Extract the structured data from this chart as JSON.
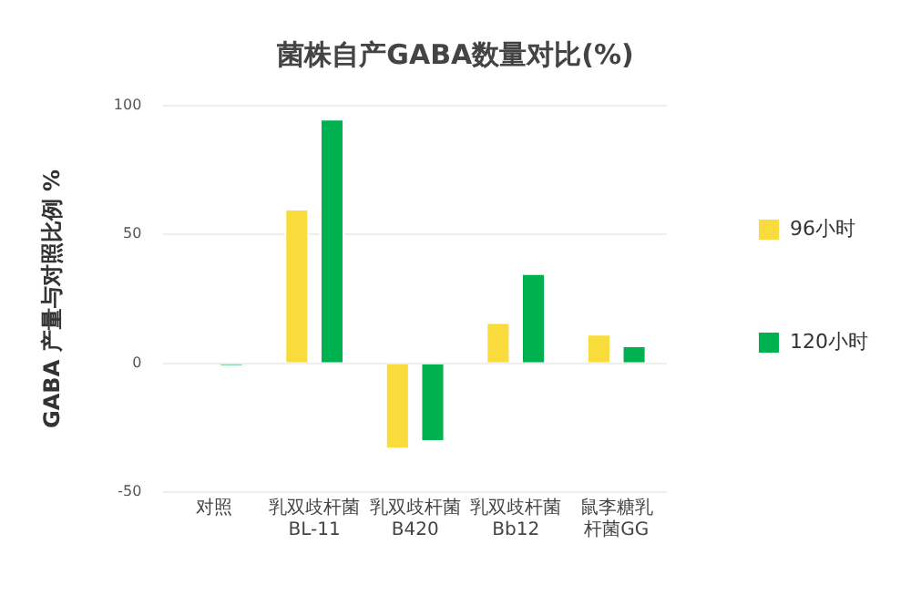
{
  "chart_data": {
    "type": "bar",
    "title": "菌株自产GABA数量对比(%)",
    "ylabel": "GABA 产量与对照比例 %",
    "categories": [
      "对照",
      "乳双歧杆菌\nBL-11",
      "乳双歧杆菌\nB420",
      "乳双歧杆菌\nBb12",
      "鼠李糖乳杆菌GG"
    ],
    "series": [
      {
        "name": "96小时",
        "color": "#f9dc3c",
        "values": [
          0,
          60,
          -33.5,
          16,
          11.5
        ]
      },
      {
        "name": "120小时",
        "color": "#00b14f",
        "values": [
          -1,
          95,
          -30.5,
          35,
          7
        ]
      }
    ],
    "ylim": [
      -50,
      100
    ],
    "yticks": [
      -50,
      0,
      50,
      100
    ],
    "grid": "y",
    "legend": "right"
  }
}
